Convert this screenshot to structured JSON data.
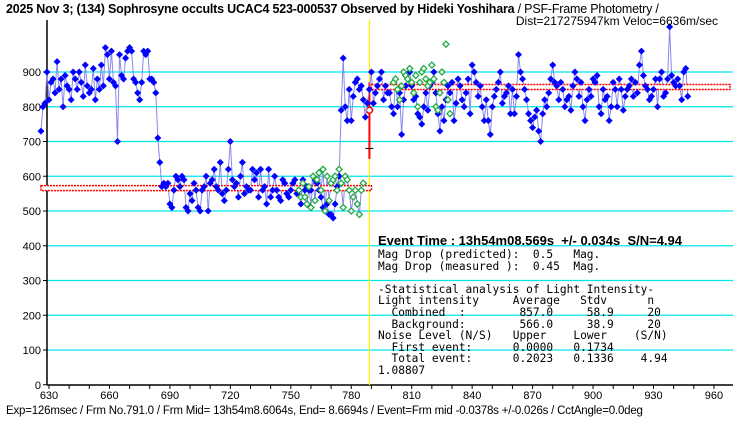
{
  "header": {
    "title_bold": "2025 Nov 3; (134) Sophrosyne occults UCAC4 523-000537 Observed by Hideki Yoshihara",
    "title_normal": " / PSF-Frame Photometry /",
    "dist": "Dist=217275947km Veloc=6636m/sec"
  },
  "info": {
    "event_time": "Event Time : 13h54m08.569s  +/- 0.034s  S/N=4.94",
    "lines": [
      "Mag Drop (predicted):  0.5   Mag.",
      "Mag Drop (measured ):  0.45  Mag.",
      "",
      "-Statistical analysis of Light Intensity-",
      "Light intensity     Average   Stdv      n",
      "  Combined  :        857.0     58.9     20",
      "  Background:        566.0     38.9     20",
      "Noise Level (N/S)   Upper    Lower    (S/N)",
      "  First event:      0.0000   0.1734",
      "  Total event:      0.2023   0.1336    4.94",
      "1.08807"
    ]
  },
  "footer": "Exp=126msec / Frm No.791.0 / Frm Mid= 13h54m8.6064s,  End= 8.6694s / Event=Frm mid -0.0378s +/-0.026s / CctAngle=0.0deg",
  "colors": {
    "target": "#0000ff",
    "comparison": "#22aa44",
    "level": "#ff0000",
    "grid": "#00e5ee",
    "event": "#ffee00",
    "line": "#8888ee"
  },
  "chart_data": {
    "type": "line",
    "xlabel": "Frame No.",
    "ylabel": "Light intensity",
    "xlim": [
      626,
      968
    ],
    "ylim": [
      0,
      1050
    ],
    "xticks": [
      630,
      660,
      690,
      720,
      750,
      780,
      810,
      840,
      870,
      900,
      930,
      960
    ],
    "yticks": [
      0,
      100,
      200,
      300,
      400,
      500,
      600,
      700,
      800,
      900
    ],
    "grid": true,
    "event_frame": 791,
    "levels": [
      {
        "name": "Background",
        "value": 566.0,
        "from": 626,
        "to": 790
      },
      {
        "name": "Combined",
        "value": 857.0,
        "from": 790,
        "to": 968
      }
    ],
    "series": [
      {
        "name": "Target",
        "x_start": 626,
        "values": [
          730,
          800,
          810,
          900,
          820,
          870,
          880,
          840,
          930,
          850,
          880,
          800,
          890,
          860,
          850,
          820,
          900,
          880,
          850,
          900,
          870,
          830,
          920,
          860,
          840,
          850,
          910,
          820,
          880,
          850,
          920,
          860,
          970,
          950,
          880,
          960,
          870,
          860,
          700,
          950,
          890,
          880,
          940,
          960,
          970,
          960,
          880,
          870,
          840,
          820,
          870,
          960,
          950,
          960,
          880,
          880,
          870,
          840,
          710,
          640,
          570,
          580,
          570,
          580,
          520,
          510,
          560,
          600,
          590,
          570,
          600,
          590,
          510,
          500,
          550,
          530,
          580,
          560,
          510,
          500,
          560,
          570,
          600,
          500,
          580,
          590,
          620,
          570,
          560,
          640,
          550,
          530,
          560,
          620,
          700,
          590,
          570,
          580,
          540,
          600,
          640,
          550,
          570,
          560,
          560,
          620,
          590,
          610,
          540,
          620,
          560,
          570,
          520,
          620,
          540,
          560,
          600,
          560,
          540,
          530,
          590,
          580,
          550,
          540,
          560,
          580,
          590,
          550,
          560,
          520,
          590,
          560,
          570,
          560,
          560,
          600,
          590,
          580,
          560,
          540,
          510,
          500,
          520,
          490,
          490,
          480,
          520,
          570,
          600,
          790,
          940,
          800,
          760,
          850,
          760,
          830,
          870,
          880,
          850,
          860,
          820,
          770,
          810,
          850,
          900,
          810,
          840,
          860,
          880,
          900,
          820,
          860,
          840,
          840,
          800,
          780,
          880,
          800,
          840,
          720,
          820,
          860,
          880,
          900,
          860,
          820,
          830,
          780,
          770,
          750,
          800,
          840,
          790,
          860,
          870,
          900,
          840,
          780,
          730,
          800,
          760,
          820,
          860,
          840,
          870,
          760,
          810,
          880,
          860,
          820,
          800,
          840,
          880,
          780,
          920,
          900,
          870,
          830,
          860,
          800,
          760,
          820,
          760,
          720,
          800,
          830,
          850,
          870,
          900,
          810,
          830,
          840,
          860,
          780,
          850,
          780,
          830,
          950,
          900,
          880,
          850,
          820,
          780,
          760,
          740,
          770,
          790,
          730,
          700,
          780,
          820,
          800,
          840,
          880,
          920,
          870,
          860,
          820,
          870,
          850,
          800,
          820,
          830,
          790,
          860,
          900,
          880,
          830,
          870,
          800,
          760,
          820,
          850,
          830,
          880,
          870,
          890,
          800,
          780,
          850,
          820,
          830,
          760,
          800,
          870,
          850,
          800,
          880,
          850,
          790,
          830,
          850,
          860,
          880,
          830,
          870,
          840,
          920,
          960,
          890,
          860,
          850,
          820,
          830,
          850,
          880,
          800,
          880,
          900,
          830,
          840,
          880,
          1030,
          890,
          870,
          860,
          880,
          860,
          820,
          900,
          910,
          830
        ]
      },
      {
        "name": "Comparison",
        "x_start": 754,
        "values": [
          560,
          540,
          580,
          540,
          520,
          570,
          510,
          600,
          530,
          590,
          610,
          560,
          620,
          500,
          600,
          530,
          580,
          590,
          600,
          560,
          620,
          580,
          510,
          600,
          590,
          560,
          500,
          540,
          560,
          520,
          490,
          560,
          580,
          null,
          null,
          null,
          null,
          null,
          null,
          null,
          null,
          null,
          null,
          null,
          null,
          null,
          null,
          870,
          880,
          850,
          820,
          860,
          900,
          890,
          880,
          910,
          870,
          840,
          890,
          800,
          870,
          900,
          910,
          880,
          860,
          870,
          920,
          880,
          800,
          790,
          840,
          900,
          870,
          980,
          820,
          780
        ]
      }
    ]
  }
}
